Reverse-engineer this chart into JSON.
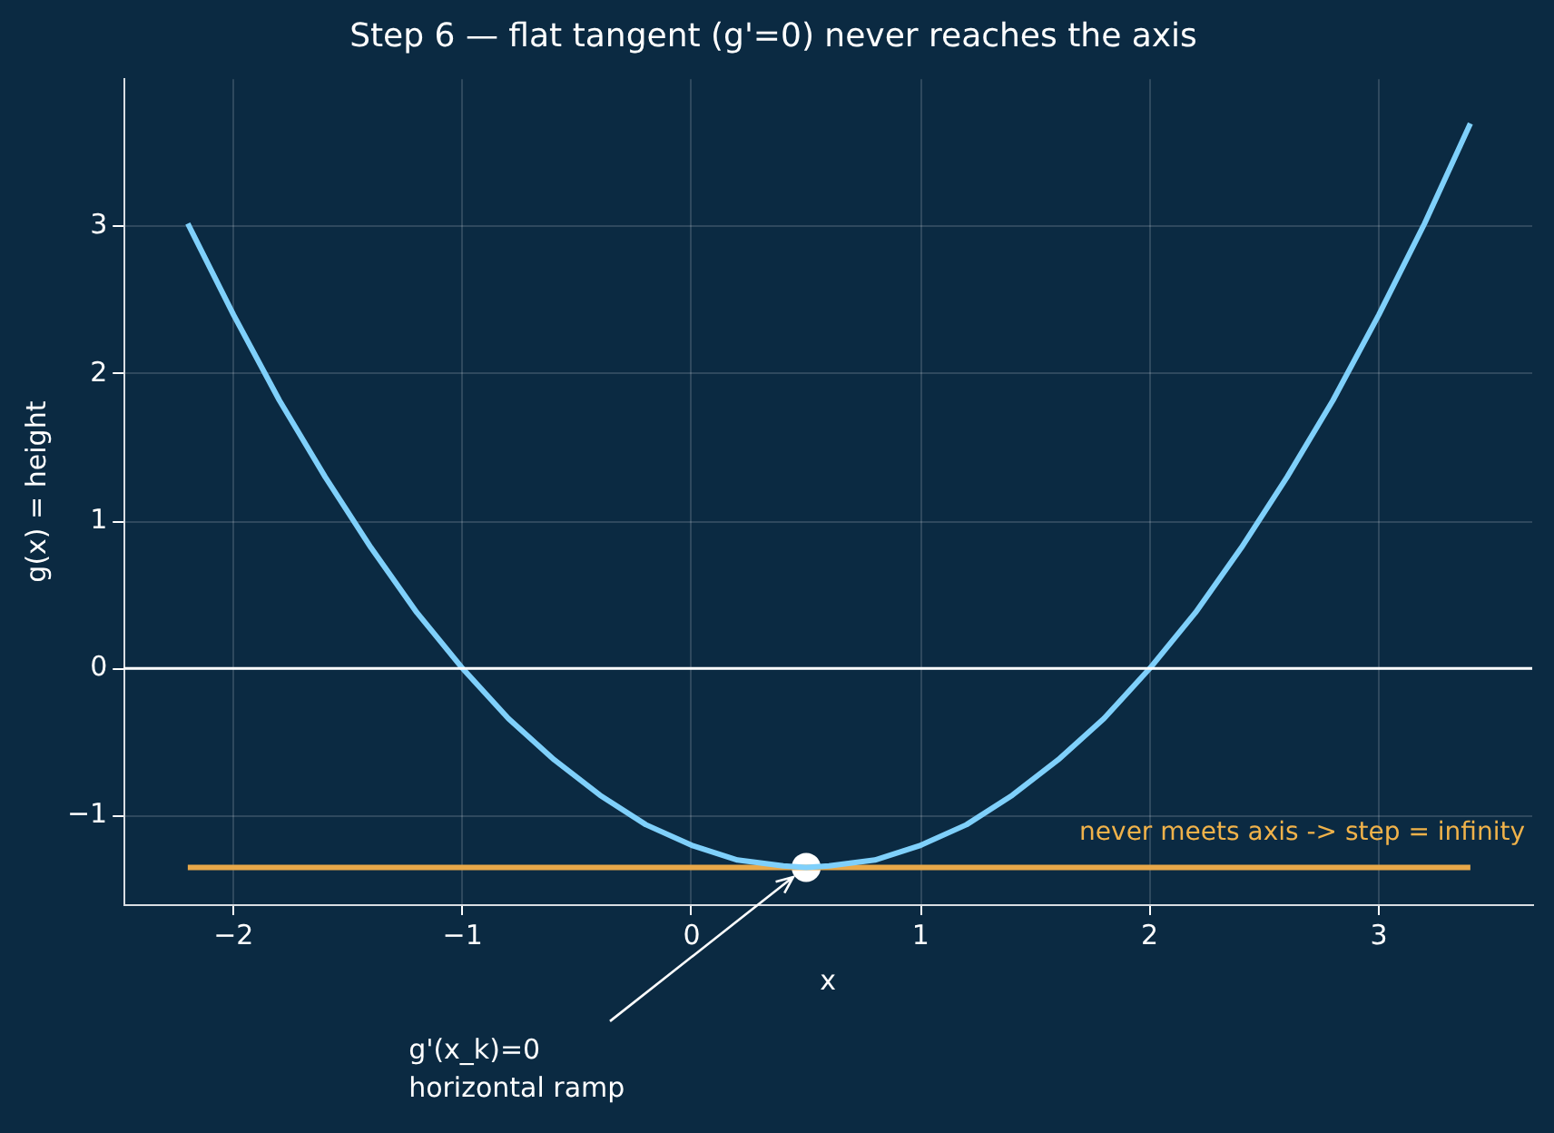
{
  "chart_data": {
    "type": "line",
    "title": "Step 6 — flat tangent (g'=0) never reaches the axis",
    "xlabel": "x",
    "ylabel": "g(x) = height",
    "series": [
      {
        "color": "#7fd0fb",
        "x": [
          -2.2,
          -2.0,
          -1.8,
          -1.6,
          -1.4,
          -1.2,
          -1.0,
          -0.8,
          -0.6,
          -0.4,
          -0.2,
          0,
          0.2,
          0.4,
          0.5,
          0.6,
          0.8,
          1.0,
          1.2,
          1.4,
          1.6,
          1.8,
          2.0,
          2.2,
          2.4,
          2.6,
          2.8,
          3.0,
          3.2,
          3.4
        ],
        "values": [
          3.02,
          2.4,
          1.82,
          1.3,
          0.82,
          0.38,
          0,
          -0.34,
          -0.62,
          -0.86,
          -1.06,
          -1.2,
          -1.3,
          -1.34,
          -1.35,
          -1.34,
          -1.3,
          -1.2,
          -1.06,
          -0.86,
          -0.62,
          -0.34,
          0,
          0.38,
          0.82,
          1.3,
          1.82,
          2.4,
          3.02,
          3.7
        ]
      },
      {
        "color": "#e8a849",
        "x": [
          -2.2,
          3.4
        ],
        "values": [
          -1.35,
          -1.35
        ]
      },
      {
        "type": "scatter",
        "color": "#ffffff",
        "x": [
          0.5
        ],
        "values": [
          -1.35
        ]
      }
    ],
    "xlim": [
      -2.48,
      3.67
    ],
    "xticks": [
      -2,
      -1,
      0,
      1,
      2,
      3
    ],
    "ylim": [
      -1.6,
      4.0
    ],
    "yticks": [
      -1,
      0,
      1,
      2,
      3
    ],
    "ref_lines": [
      {
        "axis": "y",
        "value": 0,
        "color": "#ffffff"
      }
    ],
    "annotations": [
      {
        "text": "g'(x_k)=0\nhorizontal ramp",
        "x": 0.5,
        "y": -1.35
      },
      "never meets axis -> step = infinity"
    ],
    "grid": true,
    "legend": false
  }
}
